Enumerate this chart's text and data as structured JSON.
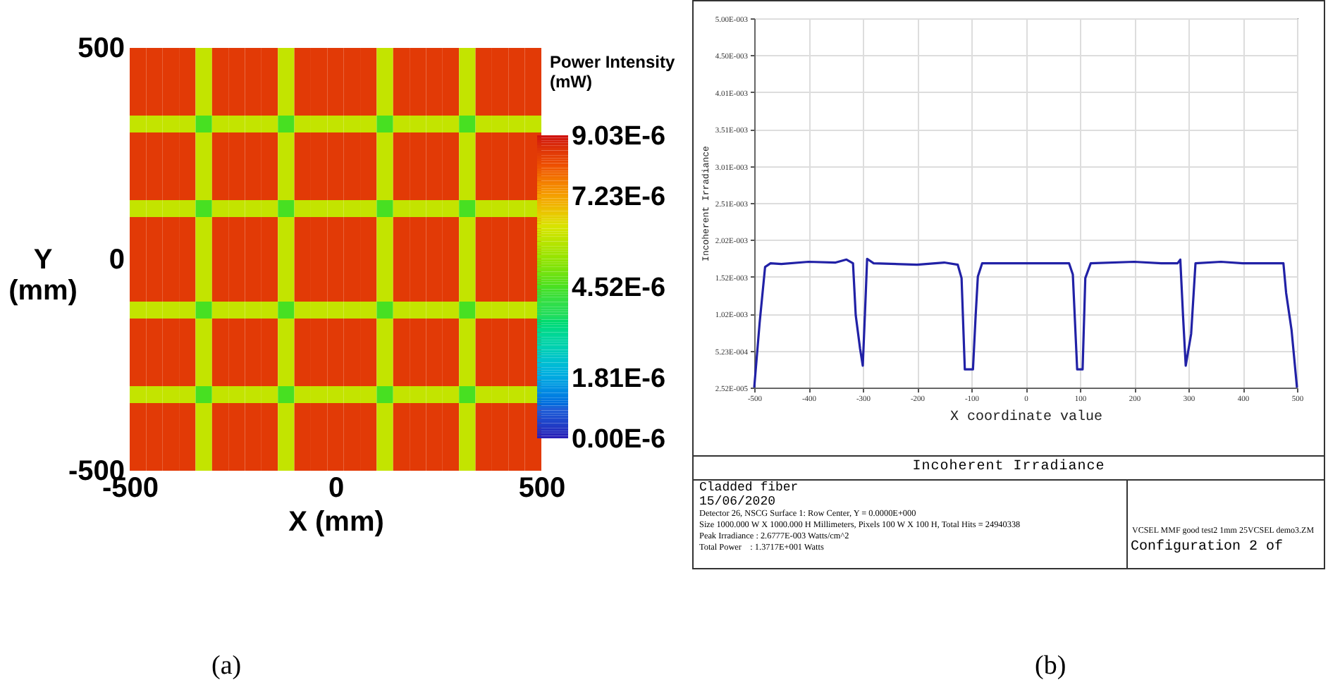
{
  "chart_data": [
    {
      "type": "heatmap",
      "xlabel": "X (mm)",
      "ylabel": "Y (mm)",
      "clabel": "Power Intensity (mW)",
      "annotations": [
        "(a)"
      ],
      "x": [
        -480,
        -440,
        -400,
        -360,
        -320,
        -280,
        -240,
        -200,
        -160,
        -120,
        -80,
        -40,
        0,
        40,
        80,
        120,
        160,
        200,
        240,
        280,
        320,
        360,
        400,
        440,
        480
      ],
      "y": [
        480,
        440,
        400,
        360,
        320,
        280,
        240,
        200,
        160,
        120,
        80,
        40,
        0,
        -40,
        -80,
        -120,
        -160,
        -200,
        -240,
        -280,
        -320,
        -360,
        -400,
        -440,
        -480
      ],
      "xlim": [
        -500,
        500
      ],
      "ylim": [
        -500,
        500
      ],
      "xticks": [
        -500,
        0,
        500
      ],
      "yticks": [
        -500,
        0,
        500
      ],
      "clim": [
        0,
        9.03e-06
      ],
      "cticks": [
        {
          "value": 0,
          "label": "0.00E-6"
        },
        {
          "value": 1.81e-06,
          "label": "1.81E-6"
        },
        {
          "value": 4.52e-06,
          "label": "4.52E-6"
        },
        {
          "value": 7.23e-06,
          "label": "7.23E-6"
        },
        {
          "value": 9.03e-06,
          "label": "9.03E-6"
        }
      ],
      "cells": [
        [
          8.5e-06,
          8.5e-06,
          8.5e-06,
          8.5e-06,
          6e-06,
          8.5e-06,
          8.5e-06,
          8.5e-06,
          8.5e-06,
          6e-06,
          8.5e-06,
          8.5e-06,
          8.5e-06,
          8.5e-06,
          8.5e-06,
          6e-06,
          8.5e-06,
          8.5e-06,
          8.5e-06,
          8.5e-06,
          6e-06,
          8.5e-06,
          8.5e-06,
          8.5e-06,
          8.5e-06
        ],
        [
          8.5e-06,
          8.5e-06,
          8.5e-06,
          8.5e-06,
          6e-06,
          8.5e-06,
          8.5e-06,
          8.5e-06,
          8.5e-06,
          6e-06,
          8.5e-06,
          8.5e-06,
          8.5e-06,
          8.5e-06,
          8.5e-06,
          6e-06,
          8.5e-06,
          8.5e-06,
          8.5e-06,
          8.5e-06,
          6e-06,
          8.5e-06,
          8.5e-06,
          8.5e-06,
          8.5e-06
        ],
        [
          8.5e-06,
          8.5e-06,
          8.5e-06,
          8.5e-06,
          6e-06,
          8.5e-06,
          8.5e-06,
          8.5e-06,
          8.5e-06,
          6e-06,
          8.5e-06,
          8.5e-06,
          8.5e-06,
          8.5e-06,
          8.5e-06,
          6e-06,
          8.5e-06,
          8.5e-06,
          8.5e-06,
          8.5e-06,
          6e-06,
          8.5e-06,
          8.5e-06,
          8.5e-06,
          8.5e-06
        ],
        [
          8.5e-06,
          8.5e-06,
          8.5e-06,
          8.5e-06,
          6e-06,
          8.5e-06,
          8.5e-06,
          8.5e-06,
          8.5e-06,
          6e-06,
          8.5e-06,
          8.5e-06,
          8.5e-06,
          8.5e-06,
          8.5e-06,
          6e-06,
          8.5e-06,
          8.5e-06,
          8.5e-06,
          8.5e-06,
          6e-06,
          8.5e-06,
          8.5e-06,
          8.5e-06,
          8.5e-06
        ],
        [
          6e-06,
          6e-06,
          6e-06,
          6e-06,
          4.5e-06,
          6e-06,
          6e-06,
          6e-06,
          6e-06,
          4.5e-06,
          6e-06,
          6e-06,
          6e-06,
          6e-06,
          6e-06,
          4.5e-06,
          6e-06,
          6e-06,
          6e-06,
          6e-06,
          4.5e-06,
          6e-06,
          6e-06,
          6e-06,
          6e-06
        ],
        [
          8.5e-06,
          8.5e-06,
          8.5e-06,
          8.5e-06,
          6e-06,
          8.5e-06,
          8.5e-06,
          8.5e-06,
          8.5e-06,
          6e-06,
          8.5e-06,
          8.5e-06,
          8.5e-06,
          8.5e-06,
          8.5e-06,
          6e-06,
          8.5e-06,
          8.5e-06,
          8.5e-06,
          8.5e-06,
          6e-06,
          8.5e-06,
          8.5e-06,
          8.5e-06,
          8.5e-06
        ],
        [
          8.5e-06,
          8.5e-06,
          8.5e-06,
          8.5e-06,
          6e-06,
          8.5e-06,
          8.5e-06,
          8.5e-06,
          8.5e-06,
          6e-06,
          8.5e-06,
          8.5e-06,
          8.5e-06,
          8.5e-06,
          8.5e-06,
          6e-06,
          8.5e-06,
          8.5e-06,
          8.5e-06,
          8.5e-06,
          6e-06,
          8.5e-06,
          8.5e-06,
          8.5e-06,
          8.5e-06
        ],
        [
          8.5e-06,
          8.5e-06,
          8.5e-06,
          8.5e-06,
          6e-06,
          8.5e-06,
          8.5e-06,
          8.5e-06,
          8.5e-06,
          6e-06,
          8.5e-06,
          8.5e-06,
          8.5e-06,
          8.5e-06,
          8.5e-06,
          6e-06,
          8.5e-06,
          8.5e-06,
          8.5e-06,
          8.5e-06,
          6e-06,
          8.5e-06,
          8.5e-06,
          8.5e-06,
          8.5e-06
        ],
        [
          8.5e-06,
          8.5e-06,
          8.5e-06,
          8.5e-06,
          6e-06,
          8.5e-06,
          8.5e-06,
          8.5e-06,
          8.5e-06,
          6e-06,
          8.5e-06,
          8.5e-06,
          8.5e-06,
          8.5e-06,
          8.5e-06,
          6e-06,
          8.5e-06,
          8.5e-06,
          8.5e-06,
          8.5e-06,
          6e-06,
          8.5e-06,
          8.5e-06,
          8.5e-06,
          8.5e-06
        ],
        [
          6e-06,
          6e-06,
          6e-06,
          6e-06,
          4.5e-06,
          6e-06,
          6e-06,
          6e-06,
          6e-06,
          4.5e-06,
          6e-06,
          6e-06,
          6e-06,
          6e-06,
          6e-06,
          4.5e-06,
          6e-06,
          6e-06,
          6e-06,
          6e-06,
          4.5e-06,
          6e-06,
          6e-06,
          6e-06,
          6e-06
        ],
        [
          8.5e-06,
          8.5e-06,
          8.5e-06,
          8.5e-06,
          6e-06,
          8.5e-06,
          8.5e-06,
          8.5e-06,
          8.5e-06,
          6e-06,
          8.5e-06,
          8.5e-06,
          8.5e-06,
          8.5e-06,
          8.5e-06,
          6e-06,
          8.5e-06,
          8.5e-06,
          8.5e-06,
          8.5e-06,
          6e-06,
          8.5e-06,
          8.5e-06,
          8.5e-06,
          8.5e-06
        ],
        [
          8.5e-06,
          8.5e-06,
          8.5e-06,
          8.5e-06,
          6e-06,
          8.5e-06,
          8.5e-06,
          8.5e-06,
          8.5e-06,
          6e-06,
          8.5e-06,
          8.5e-06,
          8.5e-06,
          8.5e-06,
          8.5e-06,
          6e-06,
          8.5e-06,
          8.5e-06,
          8.5e-06,
          8.5e-06,
          6e-06,
          8.5e-06,
          8.5e-06,
          8.5e-06,
          8.5e-06
        ],
        [
          8.5e-06,
          8.5e-06,
          8.5e-06,
          8.5e-06,
          6e-06,
          8.5e-06,
          8.5e-06,
          8.5e-06,
          8.5e-06,
          6e-06,
          8.5e-06,
          8.5e-06,
          8.5e-06,
          8.5e-06,
          8.5e-06,
          6e-06,
          8.5e-06,
          8.5e-06,
          8.5e-06,
          8.5e-06,
          6e-06,
          8.5e-06,
          8.5e-06,
          8.5e-06,
          8.5e-06
        ],
        [
          8.5e-06,
          8.5e-06,
          8.5e-06,
          8.5e-06,
          6e-06,
          8.5e-06,
          8.5e-06,
          8.5e-06,
          8.5e-06,
          6e-06,
          8.5e-06,
          8.5e-06,
          8.5e-06,
          8.5e-06,
          8.5e-06,
          6e-06,
          8.5e-06,
          8.5e-06,
          8.5e-06,
          8.5e-06,
          6e-06,
          8.5e-06,
          8.5e-06,
          8.5e-06,
          8.5e-06
        ],
        [
          8.5e-06,
          8.5e-06,
          8.5e-06,
          8.5e-06,
          6e-06,
          8.5e-06,
          8.5e-06,
          8.5e-06,
          8.5e-06,
          6e-06,
          8.5e-06,
          8.5e-06,
          8.5e-06,
          8.5e-06,
          8.5e-06,
          6e-06,
          8.5e-06,
          8.5e-06,
          8.5e-06,
          8.5e-06,
          6e-06,
          8.5e-06,
          8.5e-06,
          8.5e-06,
          8.5e-06
        ],
        [
          6e-06,
          6e-06,
          6e-06,
          6e-06,
          4.5e-06,
          6e-06,
          6e-06,
          6e-06,
          6e-06,
          4.5e-06,
          6e-06,
          6e-06,
          6e-06,
          6e-06,
          6e-06,
          4.5e-06,
          6e-06,
          6e-06,
          6e-06,
          6e-06,
          4.5e-06,
          6e-06,
          6e-06,
          6e-06,
          6e-06
        ],
        [
          8.5e-06,
          8.5e-06,
          8.5e-06,
          8.5e-06,
          6e-06,
          8.5e-06,
          8.5e-06,
          8.5e-06,
          8.5e-06,
          6e-06,
          8.5e-06,
          8.5e-06,
          8.5e-06,
          8.5e-06,
          8.5e-06,
          6e-06,
          8.5e-06,
          8.5e-06,
          8.5e-06,
          8.5e-06,
          6e-06,
          8.5e-06,
          8.5e-06,
          8.5e-06,
          8.5e-06
        ],
        [
          8.5e-06,
          8.5e-06,
          8.5e-06,
          8.5e-06,
          6e-06,
          8.5e-06,
          8.5e-06,
          8.5e-06,
          8.5e-06,
          6e-06,
          8.5e-06,
          8.5e-06,
          8.5e-06,
          8.5e-06,
          8.5e-06,
          6e-06,
          8.5e-06,
          8.5e-06,
          8.5e-06,
          8.5e-06,
          6e-06,
          8.5e-06,
          8.5e-06,
          8.5e-06,
          8.5e-06
        ],
        [
          8.5e-06,
          8.5e-06,
          8.5e-06,
          8.5e-06,
          6e-06,
          8.5e-06,
          8.5e-06,
          8.5e-06,
          8.5e-06,
          6e-06,
          8.5e-06,
          8.5e-06,
          8.5e-06,
          8.5e-06,
          8.5e-06,
          6e-06,
          8.5e-06,
          8.5e-06,
          8.5e-06,
          8.5e-06,
          6e-06,
          8.5e-06,
          8.5e-06,
          8.5e-06,
          8.5e-06
        ],
        [
          8.5e-06,
          8.5e-06,
          8.5e-06,
          8.5e-06,
          6e-06,
          8.5e-06,
          8.5e-06,
          8.5e-06,
          8.5e-06,
          6e-06,
          8.5e-06,
          8.5e-06,
          8.5e-06,
          8.5e-06,
          8.5e-06,
          6e-06,
          8.5e-06,
          8.5e-06,
          8.5e-06,
          8.5e-06,
          6e-06,
          8.5e-06,
          8.5e-06,
          8.5e-06,
          8.5e-06
        ],
        [
          6e-06,
          6e-06,
          6e-06,
          6e-06,
          4.5e-06,
          6e-06,
          6e-06,
          6e-06,
          6e-06,
          4.5e-06,
          6e-06,
          6e-06,
          6e-06,
          6e-06,
          6e-06,
          4.5e-06,
          6e-06,
          6e-06,
          6e-06,
          6e-06,
          4.5e-06,
          6e-06,
          6e-06,
          6e-06,
          6e-06
        ],
        [
          8.5e-06,
          8.5e-06,
          8.5e-06,
          8.5e-06,
          6e-06,
          8.5e-06,
          8.5e-06,
          8.5e-06,
          8.5e-06,
          6e-06,
          8.5e-06,
          8.5e-06,
          8.5e-06,
          8.5e-06,
          8.5e-06,
          6e-06,
          8.5e-06,
          8.5e-06,
          8.5e-06,
          8.5e-06,
          6e-06,
          8.5e-06,
          8.5e-06,
          8.5e-06,
          8.5e-06
        ],
        [
          8.5e-06,
          8.5e-06,
          8.5e-06,
          8.5e-06,
          6e-06,
          8.5e-06,
          8.5e-06,
          8.5e-06,
          8.5e-06,
          6e-06,
          8.5e-06,
          8.5e-06,
          8.5e-06,
          8.5e-06,
          8.5e-06,
          6e-06,
          8.5e-06,
          8.5e-06,
          8.5e-06,
          8.5e-06,
          6e-06,
          8.5e-06,
          8.5e-06,
          8.5e-06,
          8.5e-06
        ],
        [
          8.5e-06,
          8.5e-06,
          8.5e-06,
          8.5e-06,
          6e-06,
          8.5e-06,
          8.5e-06,
          8.5e-06,
          8.5e-06,
          6e-06,
          8.5e-06,
          8.5e-06,
          8.5e-06,
          8.5e-06,
          8.5e-06,
          6e-06,
          8.5e-06,
          8.5e-06,
          8.5e-06,
          8.5e-06,
          6e-06,
          8.5e-06,
          8.5e-06,
          8.5e-06,
          8.5e-06
        ],
        [
          8.5e-06,
          8.5e-06,
          8.5e-06,
          8.5e-06,
          6e-06,
          8.5e-06,
          8.5e-06,
          8.5e-06,
          8.5e-06,
          6e-06,
          8.5e-06,
          8.5e-06,
          8.5e-06,
          8.5e-06,
          8.5e-06,
          6e-06,
          8.5e-06,
          8.5e-06,
          8.5e-06,
          8.5e-06,
          6e-06,
          8.5e-06,
          8.5e-06,
          8.5e-06,
          8.5e-06
        ]
      ]
    },
    {
      "type": "line",
      "title": "Incoherent Irradiance",
      "xlabel": "X coordinate value",
      "ylabel": "Incoherent Irradiance",
      "grid": true,
      "annotations": [
        "Cladded fiber",
        "15/06/2020",
        "Detector 26, NSCG Surface 1: Row Center, Y = 0.0000E+000",
        "Size 1000.000 W X 1000.000 H Millimeters, Pixels 100 W X 100 H, Total Hits = 24940338",
        "Peak Irradiance : 2.6777E-003 Watts/cm^2",
        "Total Power    : 1.3717E+001 Watts",
        "VCSEL MMF good test2 1mm 25VCSEL demo3.ZM",
        "Configuration 2 of",
        "(b)"
      ],
      "xlim": [
        -500,
        500
      ],
      "xticks": [
        -500,
        -400,
        -300,
        -200,
        -100,
        0,
        100,
        200,
        300,
        400,
        500
      ],
      "ylim": [
        2.52e-05,
        0.005
      ],
      "yticks": [
        {
          "value": 2.52e-05,
          "label": "2.52E-005"
        },
        {
          "value": 0.0005227,
          "label": "5.23E-004"
        },
        {
          "value": 0.0010202,
          "label": "1.02E-003"
        },
        {
          "value": 0.0015176,
          "label": "1.52E-003"
        },
        {
          "value": 0.0020151,
          "label": "2.02E-003"
        },
        {
          "value": 0.0025126,
          "label": "2.51E-003"
        },
        {
          "value": 0.0030101,
          "label": "3.01E-003"
        },
        {
          "value": 0.0035076,
          "label": "3.51E-003"
        },
        {
          "value": 0.004005,
          "label": "4.01E-003"
        },
        {
          "value": 0.0045025,
          "label": "4.50E-003"
        },
        {
          "value": 0.005,
          "label": "5.00E-003"
        }
      ],
      "series": [
        {
          "color": "#2121a6",
          "x": [
            -500,
            -490,
            -480,
            -470,
            -450,
            -400,
            -350,
            -330,
            -318,
            -313,
            -305,
            -300,
            -295,
            -292,
            -280,
            -200,
            -150,
            -125,
            -118,
            -112,
            -97,
            -92,
            -88,
            -80,
            -50,
            0,
            50,
            80,
            87,
            95,
            105,
            110,
            120,
            200,
            250,
            280,
            285,
            290,
            295,
            305,
            313,
            360,
            400,
            450,
            475,
            480,
            490,
            500
          ],
          "values": [
            2.52e-05,
            0.0009,
            0.00165,
            0.0017,
            0.00169,
            0.00172,
            0.00171,
            0.00175,
            0.0017,
            0.001,
            0.00055,
            0.00032,
            0.0012,
            0.00176,
            0.0017,
            0.00168,
            0.00171,
            0.00168,
            0.0015,
            0.00027,
            0.00027,
            0.001,
            0.00152,
            0.0017,
            0.0017,
            0.0017,
            0.0017,
            0.0017,
            0.00155,
            0.00027,
            0.00027,
            0.0015,
            0.0017,
            0.00172,
            0.0017,
            0.0017,
            0.00175,
            0.001,
            0.00032,
            0.00075,
            0.0017,
            0.00172,
            0.0017,
            0.0017,
            0.0017,
            0.0013,
            0.0008,
            2.52e-05
          ]
        }
      ]
    }
  ]
}
